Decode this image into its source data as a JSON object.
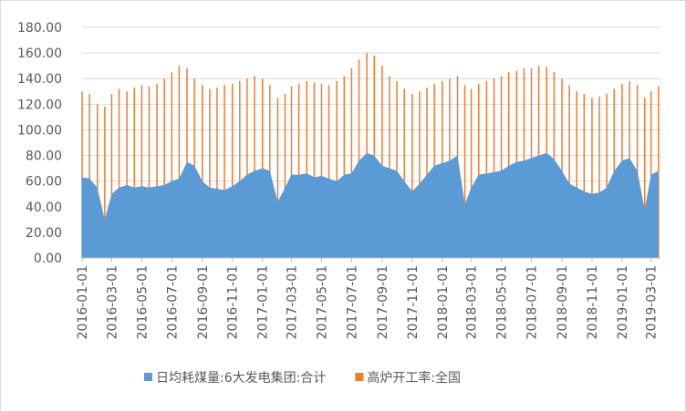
{
  "chart_data": {
    "type": "area-bar",
    "grid": true,
    "legend": "bottom",
    "x": [
      "2016-01-01",
      "2016-01-16",
      "2016-02-01",
      "2016-02-16",
      "2016-03-01",
      "2016-03-16",
      "2016-04-01",
      "2016-04-16",
      "2016-05-01",
      "2016-05-16",
      "2016-06-01",
      "2016-06-16",
      "2016-07-01",
      "2016-07-16",
      "2016-08-01",
      "2016-08-16",
      "2016-09-01",
      "2016-09-16",
      "2016-10-01",
      "2016-10-16",
      "2016-11-01",
      "2016-11-16",
      "2016-12-01",
      "2016-12-16",
      "2017-01-01",
      "2017-01-16",
      "2017-02-01",
      "2017-02-16",
      "2017-03-01",
      "2017-03-16",
      "2017-04-01",
      "2017-04-16",
      "2017-05-01",
      "2017-05-16",
      "2017-06-01",
      "2017-06-16",
      "2017-07-01",
      "2017-07-16",
      "2017-08-01",
      "2017-08-16",
      "2017-09-01",
      "2017-09-16",
      "2017-10-01",
      "2017-10-16",
      "2017-11-01",
      "2017-11-16",
      "2017-12-01",
      "2017-12-16",
      "2018-01-01",
      "2018-01-16",
      "2018-02-01",
      "2018-02-16",
      "2018-03-01",
      "2018-03-16",
      "2018-04-01",
      "2018-04-16",
      "2018-05-01",
      "2018-05-16",
      "2018-06-01",
      "2018-06-16",
      "2018-07-01",
      "2018-07-16",
      "2018-08-01",
      "2018-08-16",
      "2018-09-01",
      "2018-09-16",
      "2018-10-01",
      "2018-10-16",
      "2018-11-01",
      "2018-11-16",
      "2018-12-01",
      "2018-12-16",
      "2019-01-01",
      "2019-01-16",
      "2019-02-01",
      "2019-02-16",
      "2019-03-01",
      "2019-03-16"
    ],
    "series": [
      {
        "name": "日均耗煤量:6大发电集团:合计",
        "color": "#5b9bd5",
        "kind": "area",
        "values": [
          63,
          62,
          55,
          30,
          50,
          55,
          57,
          55,
          56,
          55,
          56,
          57,
          60,
          62,
          75,
          72,
          60,
          55,
          54,
          53,
          56,
          60,
          65,
          68,
          70,
          68,
          44,
          55,
          65,
          65,
          66,
          63,
          64,
          62,
          60,
          65,
          66,
          76,
          82,
          80,
          72,
          70,
          68,
          60,
          52,
          58,
          65,
          72,
          74,
          76,
          80,
          42,
          55,
          65,
          66,
          67,
          68,
          72,
          75,
          76,
          78,
          80,
          82,
          77,
          68,
          58,
          55,
          52,
          50,
          51,
          55,
          68,
          76,
          78,
          68,
          38,
          65,
          68
        ]
      },
      {
        "name": "高炉开工率:全国",
        "color": "#ed7d31",
        "kind": "bar",
        "values": [
          130,
          128,
          120,
          118,
          128,
          132,
          130,
          133,
          135,
          134,
          136,
          140,
          145,
          150,
          148,
          140,
          135,
          132,
          133,
          135,
          136,
          138,
          140,
          142,
          140,
          135,
          125,
          128,
          134,
          136,
          138,
          137,
          136,
          135,
          138,
          142,
          148,
          155,
          160,
          158,
          150,
          142,
          138,
          132,
          128,
          130,
          133,
          136,
          138,
          140,
          142,
          135,
          132,
          136,
          138,
          140,
          142,
          145,
          146,
          148,
          148,
          150,
          149,
          145,
          140,
          135,
          130,
          128,
          125,
          126,
          128,
          132,
          136,
          138,
          135,
          125,
          130,
          134
        ]
      }
    ],
    "xlim": [
      "2016-01-01",
      "2019-03-20"
    ],
    "xticks": [
      "2016-01-01",
      "2016-03-01",
      "2016-05-01",
      "2016-07-01",
      "2016-09-01",
      "2016-11-01",
      "2017-01-01",
      "2017-03-01",
      "2017-05-01",
      "2017-07-01",
      "2017-09-01",
      "2017-11-01",
      "2018-01-01",
      "2018-03-01",
      "2018-05-01",
      "2018-07-01",
      "2018-09-01",
      "2018-11-01",
      "2019-01-01",
      "2019-03-01"
    ],
    "ylim": [
      0,
      180
    ],
    "yticks": [
      {
        "value": 0,
        "label": "0.00"
      },
      {
        "value": 20,
        "label": "20.00"
      },
      {
        "value": 40,
        "label": "40.00"
      },
      {
        "value": 60,
        "label": "60.00"
      },
      {
        "value": 80,
        "label": "80.00"
      },
      {
        "value": 100,
        "label": "100.00"
      },
      {
        "value": 120,
        "label": "120.00"
      },
      {
        "value": 140,
        "label": "140.00"
      },
      {
        "value": 160,
        "label": "160.00"
      },
      {
        "value": 180,
        "label": "180.00"
      }
    ]
  }
}
